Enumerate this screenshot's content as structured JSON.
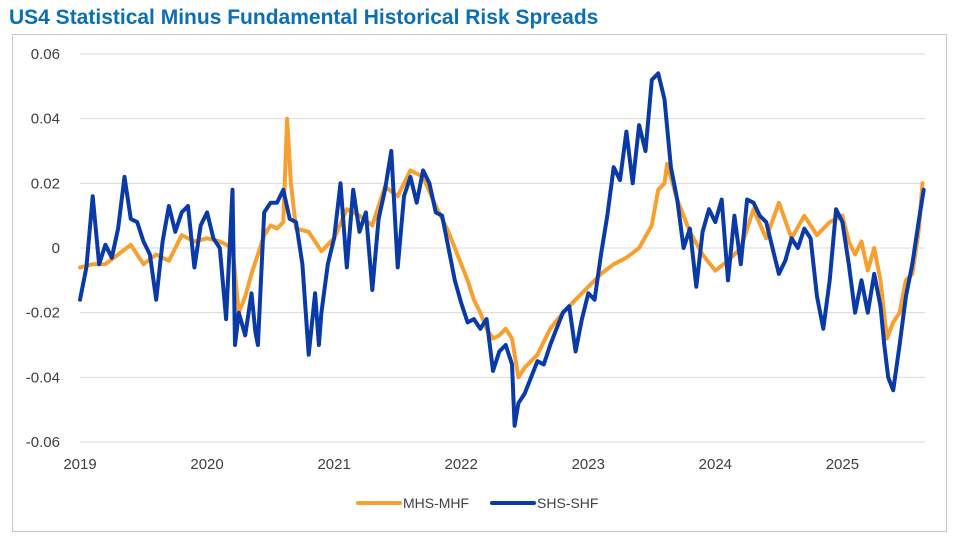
{
  "title": "US4 Statistical Minus Fundamental Historical Risk Spreads",
  "colors": {
    "title": "#0b6fb5",
    "grid": "#d9d9d9",
    "axis_text": "#404040"
  },
  "chart_data": {
    "type": "line",
    "title": "US4 Statistical Minus Fundamental Historical Risk Spreads",
    "xlabel": "",
    "ylabel": "",
    "xlim": [
      2019.0,
      2025.65
    ],
    "ylim": [
      -0.06,
      0.06
    ],
    "x_ticks": [
      "2019",
      "2020",
      "2021",
      "2022",
      "2023",
      "2024",
      "2025"
    ],
    "y_ticks": [
      "0.06",
      "0.04",
      "0.02",
      "0",
      "-0.02",
      "-0.04",
      "-0.06"
    ],
    "grid": "horizontal",
    "legend": "bottom",
    "series": [
      {
        "name": "MHS-MHF",
        "color": "#f7a030",
        "points": [
          [
            2019.0,
            -0.006
          ],
          [
            2019.1,
            -0.005
          ],
          [
            2019.2,
            -0.005
          ],
          [
            2019.3,
            -0.002
          ],
          [
            2019.4,
            0.001
          ],
          [
            2019.5,
            -0.005
          ],
          [
            2019.6,
            -0.002
          ],
          [
            2019.7,
            -0.004
          ],
          [
            2019.8,
            0.004
          ],
          [
            2019.9,
            0.002
          ],
          [
            2020.0,
            0.003
          ],
          [
            2020.1,
            0.002
          ],
          [
            2020.2,
            0.0
          ],
          [
            2020.25,
            -0.02
          ],
          [
            2020.3,
            -0.015
          ],
          [
            2020.35,
            -0.008
          ],
          [
            2020.4,
            -0.002
          ],
          [
            2020.45,
            0.004
          ],
          [
            2020.5,
            0.007
          ],
          [
            2020.55,
            0.006
          ],
          [
            2020.6,
            0.008
          ],
          [
            2020.63,
            0.04
          ],
          [
            2020.66,
            0.02
          ],
          [
            2020.7,
            0.006
          ],
          [
            2020.8,
            0.005
          ],
          [
            2020.9,
            -0.001
          ],
          [
            2021.0,
            0.003
          ],
          [
            2021.1,
            0.012
          ],
          [
            2021.2,
            0.01
          ],
          [
            2021.3,
            0.007
          ],
          [
            2021.4,
            0.019
          ],
          [
            2021.5,
            0.016
          ],
          [
            2021.6,
            0.024
          ],
          [
            2021.7,
            0.022
          ],
          [
            2021.8,
            0.013
          ],
          [
            2021.9,
            0.005
          ],
          [
            2022.0,
            -0.005
          ],
          [
            2022.05,
            -0.01
          ],
          [
            2022.1,
            -0.016
          ],
          [
            2022.15,
            -0.02
          ],
          [
            2022.2,
            -0.025
          ],
          [
            2022.25,
            -0.028
          ],
          [
            2022.3,
            -0.027
          ],
          [
            2022.35,
            -0.025
          ],
          [
            2022.4,
            -0.028
          ],
          [
            2022.45,
            -0.04
          ],
          [
            2022.5,
            -0.037
          ],
          [
            2022.6,
            -0.033
          ],
          [
            2022.7,
            -0.025
          ],
          [
            2022.8,
            -0.02
          ],
          [
            2022.9,
            -0.016
          ],
          [
            2023.0,
            -0.012
          ],
          [
            2023.1,
            -0.008
          ],
          [
            2023.2,
            -0.005
          ],
          [
            2023.3,
            -0.003
          ],
          [
            2023.4,
            0.0
          ],
          [
            2023.5,
            0.007
          ],
          [
            2023.55,
            0.018
          ],
          [
            2023.6,
            0.02
          ],
          [
            2023.62,
            0.026
          ],
          [
            2023.7,
            0.015
          ],
          [
            2023.8,
            0.005
          ],
          [
            2023.9,
            -0.002
          ],
          [
            2024.0,
            -0.007
          ],
          [
            2024.1,
            -0.004
          ],
          [
            2024.2,
            0.0
          ],
          [
            2024.3,
            0.012
          ],
          [
            2024.4,
            0.003
          ],
          [
            2024.5,
            0.014
          ],
          [
            2024.6,
            0.003
          ],
          [
            2024.7,
            0.01
          ],
          [
            2024.8,
            0.004
          ],
          [
            2024.9,
            0.008
          ],
          [
            2025.0,
            0.01
          ],
          [
            2025.05,
            0.002
          ],
          [
            2025.1,
            -0.002
          ],
          [
            2025.15,
            0.002
          ],
          [
            2025.2,
            -0.007
          ],
          [
            2025.25,
            0.0
          ],
          [
            2025.3,
            -0.01
          ],
          [
            2025.35,
            -0.028
          ],
          [
            2025.4,
            -0.023
          ],
          [
            2025.45,
            -0.02
          ],
          [
            2025.5,
            -0.01
          ],
          [
            2025.55,
            -0.008
          ],
          [
            2025.6,
            0.005
          ],
          [
            2025.63,
            0.02
          ]
        ]
      },
      {
        "name": "SHS-SHF",
        "color": "#0a3aa8",
        "points": [
          [
            2019.0,
            -0.016
          ],
          [
            2019.05,
            -0.006
          ],
          [
            2019.1,
            0.016
          ],
          [
            2019.15,
            -0.005
          ],
          [
            2019.2,
            0.001
          ],
          [
            2019.25,
            -0.003
          ],
          [
            2019.3,
            0.006
          ],
          [
            2019.35,
            0.022
          ],
          [
            2019.4,
            0.009
          ],
          [
            2019.45,
            0.008
          ],
          [
            2019.5,
            0.002
          ],
          [
            2019.55,
            -0.002
          ],
          [
            2019.6,
            -0.016
          ],
          [
            2019.65,
            0.002
          ],
          [
            2019.7,
            0.013
          ],
          [
            2019.75,
            0.005
          ],
          [
            2019.8,
            0.011
          ],
          [
            2019.85,
            0.013
          ],
          [
            2019.9,
            -0.006
          ],
          [
            2019.95,
            0.007
          ],
          [
            2020.0,
            0.011
          ],
          [
            2020.05,
            0.003
          ],
          [
            2020.1,
            0.0
          ],
          [
            2020.15,
            -0.022
          ],
          [
            2020.2,
            0.018
          ],
          [
            2020.22,
            -0.03
          ],
          [
            2020.25,
            -0.02
          ],
          [
            2020.3,
            -0.027
          ],
          [
            2020.35,
            -0.014
          ],
          [
            2020.38,
            -0.026
          ],
          [
            2020.4,
            -0.03
          ],
          [
            2020.45,
            0.011
          ],
          [
            2020.5,
            0.014
          ],
          [
            2020.55,
            0.014
          ],
          [
            2020.6,
            0.018
          ],
          [
            2020.65,
            0.009
          ],
          [
            2020.7,
            0.008
          ],
          [
            2020.75,
            -0.005
          ],
          [
            2020.8,
            -0.033
          ],
          [
            2020.85,
            -0.014
          ],
          [
            2020.88,
            -0.03
          ],
          [
            2020.9,
            -0.02
          ],
          [
            2020.95,
            -0.005
          ],
          [
            2021.0,
            0.003
          ],
          [
            2021.05,
            0.02
          ],
          [
            2021.1,
            -0.006
          ],
          [
            2021.15,
            0.018
          ],
          [
            2021.2,
            0.005
          ],
          [
            2021.25,
            0.011
          ],
          [
            2021.3,
            -0.013
          ],
          [
            2021.35,
            0.009
          ],
          [
            2021.4,
            0.018
          ],
          [
            2021.45,
            0.03
          ],
          [
            2021.5,
            -0.006
          ],
          [
            2021.55,
            0.016
          ],
          [
            2021.6,
            0.022
          ],
          [
            2021.65,
            0.014
          ],
          [
            2021.7,
            0.024
          ],
          [
            2021.75,
            0.02
          ],
          [
            2021.8,
            0.011
          ],
          [
            2021.85,
            0.01
          ],
          [
            2021.9,
            0.0
          ],
          [
            2021.95,
            -0.01
          ],
          [
            2022.0,
            -0.017
          ],
          [
            2022.05,
            -0.023
          ],
          [
            2022.1,
            -0.022
          ],
          [
            2022.15,
            -0.025
          ],
          [
            2022.2,
            -0.022
          ],
          [
            2022.25,
            -0.038
          ],
          [
            2022.3,
            -0.032
          ],
          [
            2022.35,
            -0.03
          ],
          [
            2022.4,
            -0.036
          ],
          [
            2022.42,
            -0.055
          ],
          [
            2022.45,
            -0.048
          ],
          [
            2022.5,
            -0.045
          ],
          [
            2022.55,
            -0.04
          ],
          [
            2022.6,
            -0.035
          ],
          [
            2022.65,
            -0.036
          ],
          [
            2022.7,
            -0.03
          ],
          [
            2022.75,
            -0.025
          ],
          [
            2022.8,
            -0.02
          ],
          [
            2022.85,
            -0.018
          ],
          [
            2022.9,
            -0.032
          ],
          [
            2022.95,
            -0.022
          ],
          [
            2023.0,
            -0.014
          ],
          [
            2023.05,
            -0.016
          ],
          [
            2023.1,
            -0.002
          ],
          [
            2023.15,
            0.01
          ],
          [
            2023.2,
            0.025
          ],
          [
            2023.25,
            0.021
          ],
          [
            2023.3,
            0.036
          ],
          [
            2023.35,
            0.02
          ],
          [
            2023.4,
            0.038
          ],
          [
            2023.45,
            0.03
          ],
          [
            2023.5,
            0.052
          ],
          [
            2023.55,
            0.054
          ],
          [
            2023.6,
            0.046
          ],
          [
            2023.65,
            0.025
          ],
          [
            2023.7,
            0.015
          ],
          [
            2023.75,
            0.0
          ],
          [
            2023.8,
            0.006
          ],
          [
            2023.85,
            -0.012
          ],
          [
            2023.9,
            0.005
          ],
          [
            2023.95,
            0.012
          ],
          [
            2024.0,
            0.008
          ],
          [
            2024.05,
            0.015
          ],
          [
            2024.1,
            -0.01
          ],
          [
            2024.15,
            0.01
          ],
          [
            2024.2,
            -0.005
          ],
          [
            2024.25,
            0.015
          ],
          [
            2024.3,
            0.014
          ],
          [
            2024.35,
            0.01
          ],
          [
            2024.4,
            0.008
          ],
          [
            2024.45,
            0.0
          ],
          [
            2024.5,
            -0.008
          ],
          [
            2024.55,
            -0.004
          ],
          [
            2024.6,
            0.003
          ],
          [
            2024.65,
            0.0
          ],
          [
            2024.7,
            0.006
          ],
          [
            2024.75,
            0.003
          ],
          [
            2024.8,
            -0.015
          ],
          [
            2024.85,
            -0.025
          ],
          [
            2024.9,
            -0.01
          ],
          [
            2024.95,
            0.012
          ],
          [
            2025.0,
            0.008
          ],
          [
            2025.05,
            -0.005
          ],
          [
            2025.1,
            -0.02
          ],
          [
            2025.15,
            -0.01
          ],
          [
            2025.2,
            -0.02
          ],
          [
            2025.25,
            -0.008
          ],
          [
            2025.3,
            -0.018
          ],
          [
            2025.33,
            -0.03
          ],
          [
            2025.36,
            -0.04
          ],
          [
            2025.4,
            -0.044
          ],
          [
            2025.45,
            -0.03
          ],
          [
            2025.5,
            -0.015
          ],
          [
            2025.55,
            -0.005
          ],
          [
            2025.6,
            0.008
          ],
          [
            2025.64,
            0.018
          ]
        ]
      }
    ]
  }
}
